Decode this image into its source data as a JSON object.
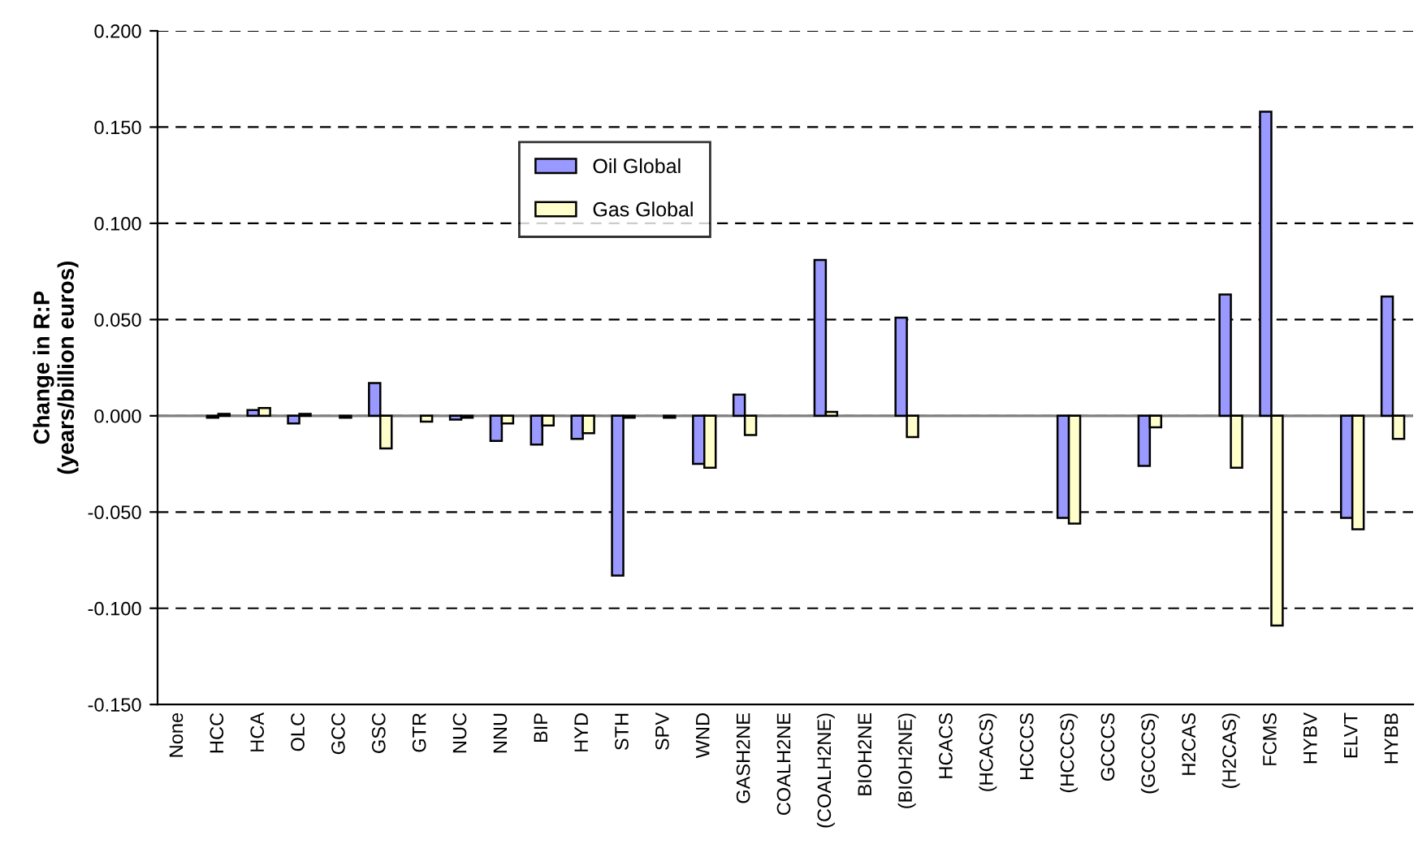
{
  "chart_data": {
    "type": "bar",
    "ylabel": "Change in R:P\n(years/billion euros)",
    "categories": [
      "None",
      "HCC",
      "HCA",
      "OLC",
      "GCC",
      "GSC",
      "GTR",
      "NUC",
      "NNU",
      "BIP",
      "HYD",
      "STH",
      "SPV",
      "WND",
      "GASH2NE",
      "COALH2NE",
      "(COALH2NE)",
      "BIOH2NE",
      "(BIOH2NE)",
      "HCACS",
      "(HCACS)",
      "HCCCS",
      "(HCCCS)",
      "GCCCS",
      "(GCCCS)",
      "H2CAS",
      "(H2CAS)",
      "FCMS",
      "HYBV",
      "ELVT",
      "HYBB"
    ],
    "series": [
      {
        "name": "Oil Global",
        "color": "#9999ff",
        "values": [
          null,
          -0.001,
          0.003,
          -0.004,
          null,
          0.017,
          null,
          -0.002,
          -0.013,
          -0.015,
          -0.012,
          -0.083,
          null,
          -0.025,
          0.011,
          null,
          0.081,
          null,
          0.051,
          null,
          null,
          null,
          -0.053,
          null,
          -0.026,
          null,
          0.063,
          0.158,
          null,
          -0.053,
          0.062
        ]
      },
      {
        "name": "Gas Global",
        "color": "#ffffcc",
        "values": [
          null,
          0.001,
          0.004,
          0.001,
          -0.001,
          -0.017,
          -0.003,
          -0.001,
          -0.004,
          -0.005,
          -0.009,
          -0.001,
          -0.001,
          -0.027,
          -0.01,
          null,
          0.002,
          null,
          -0.011,
          null,
          null,
          null,
          -0.056,
          null,
          -0.006,
          null,
          -0.027,
          -0.109,
          null,
          -0.059,
          -0.012
        ]
      }
    ],
    "ylim": [
      -0.15,
      0.2
    ],
    "yticks": [
      {
        "value": -0.15,
        "label": "-0.150"
      },
      {
        "value": -0.1,
        "label": "-0.100"
      },
      {
        "value": -0.05,
        "label": "-0.050"
      },
      {
        "value": 0,
        "label": "0.000"
      },
      {
        "value": 0.05,
        "label": "0.050"
      },
      {
        "value": 0.1,
        "label": "0.100"
      },
      {
        "value": 0.15,
        "label": "0.150"
      },
      {
        "value": 0.2,
        "label": "0.200"
      }
    ],
    "grid": "y",
    "legend": "top left",
    "ref_lines": [
      {
        "axis": "y",
        "value": 0,
        "color": "#808080",
        "line_style": "solid"
      }
    ]
  }
}
